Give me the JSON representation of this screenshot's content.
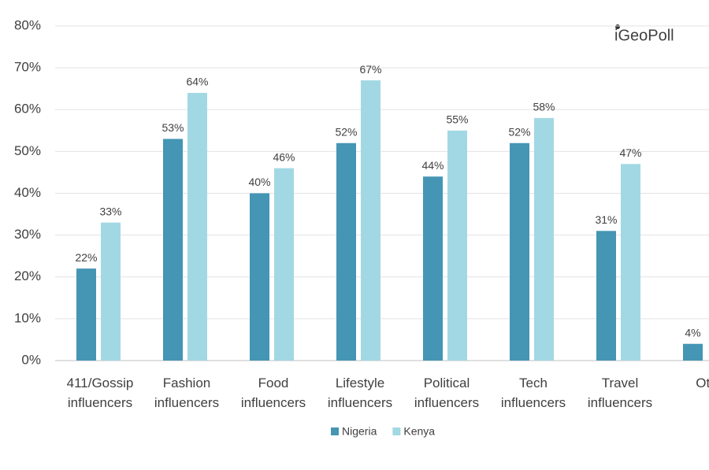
{
  "chart_data": {
    "type": "bar",
    "logo": "iGeoPoll",
    "categories": [
      "411/Gossip influencers",
      "Fashion influencers",
      "Food influencers",
      "Lifestyle influencers",
      "Political influencers",
      "Tech influencers",
      "Travel influencers",
      "Oth"
    ],
    "series": [
      {
        "name": "Nigeria",
        "color": "#4595b5",
        "values": [
          22,
          53,
          40,
          52,
          44,
          52,
          31,
          4
        ],
        "value_labels": [
          "22%",
          "53%",
          "40%",
          "52%",
          "44%",
          "52%",
          "31%",
          "4%"
        ]
      },
      {
        "name": "Kenya",
        "color": "#a2d8e4",
        "values": [
          33,
          64,
          46,
          67,
          55,
          58,
          47,
          null
        ],
        "value_labels": [
          "33%",
          "64%",
          "46%",
          "67%",
          "55%",
          "58%",
          "47%",
          null
        ]
      }
    ],
    "ylim": [
      0,
      80
    ],
    "yticks": [
      {
        "value": 0,
        "label": "0%"
      },
      {
        "value": 10,
        "label": "10%"
      },
      {
        "value": 20,
        "label": "20%"
      },
      {
        "value": 30,
        "label": "30%"
      },
      {
        "value": 40,
        "label": "40%"
      },
      {
        "value": 50,
        "label": "50%"
      },
      {
        "value": 60,
        "label": "60%"
      },
      {
        "value": 70,
        "label": "70%"
      },
      {
        "value": 80,
        "label": "80%"
      }
    ],
    "grid": true,
    "legend": "bottom"
  }
}
